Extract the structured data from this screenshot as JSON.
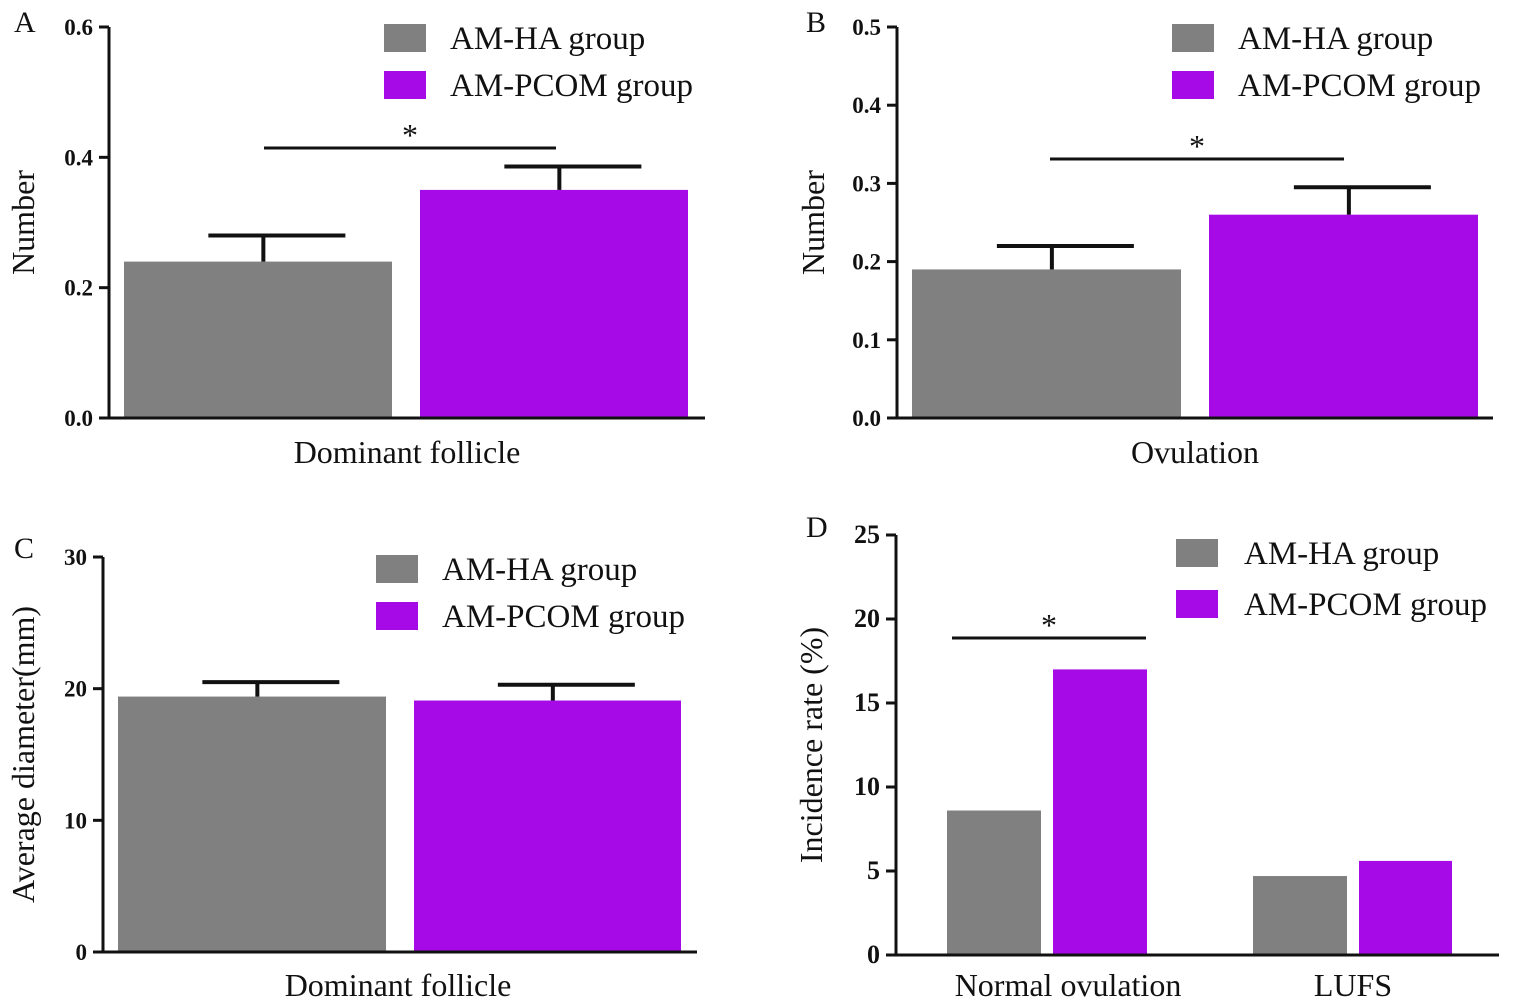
{
  "colors": {
    "ha": "#808080",
    "pcom": "#a60ae6",
    "axis": "#111111"
  },
  "chart_data": [
    {
      "id": "A",
      "panel_letter": "A",
      "type": "bar",
      "categories": [
        "Dominant follicle"
      ],
      "series": [
        {
          "name": "AM-HA group",
          "values": [
            0.24
          ],
          "errors": [
            0.04
          ]
        },
        {
          "name": "AM-PCOM group",
          "values": [
            0.35
          ],
          "errors": [
            0.036
          ]
        }
      ],
      "xlabel": "Dominant follicle",
      "ylabel": "Number",
      "ylim": [
        0,
        0.6
      ],
      "yticks": [
        "0.0",
        "0.2",
        "0.4",
        "0.6"
      ],
      "significance": [
        {
          "category": "Dominant follicle",
          "label": "*"
        }
      ],
      "legend": [
        "AM-HA group",
        "AM-PCOM group"
      ],
      "legend_position": "top-right"
    },
    {
      "id": "B",
      "panel_letter": "B",
      "type": "bar",
      "categories": [
        "Ovulation"
      ],
      "series": [
        {
          "name": "AM-HA group",
          "values": [
            0.19
          ],
          "errors": [
            0.03
          ]
        },
        {
          "name": "AM-PCOM group",
          "values": [
            0.26
          ],
          "errors": [
            0.035
          ]
        }
      ],
      "xlabel": "Ovulation",
      "ylabel": "Number",
      "ylim": [
        0,
        0.5
      ],
      "yticks": [
        "0.0",
        "0.1",
        "0.2",
        "0.3",
        "0.4",
        "0.5"
      ],
      "significance": [
        {
          "category": "Ovulation",
          "label": "*"
        }
      ],
      "legend": [
        "AM-HA group",
        "AM-PCOM group"
      ],
      "legend_position": "top-right"
    },
    {
      "id": "C",
      "panel_letter": "C",
      "type": "bar",
      "categories": [
        "Dominant follicle"
      ],
      "series": [
        {
          "name": "AM-HA group",
          "values": [
            19.4
          ],
          "errors": [
            1.1
          ]
        },
        {
          "name": "AM-PCOM group",
          "values": [
            19.1
          ],
          "errors": [
            1.2
          ]
        }
      ],
      "xlabel": "Dominant follicle",
      "ylabel": "Average diameter(mm)",
      "ylim": [
        0,
        30
      ],
      "yticks": [
        "0",
        "10",
        "20",
        "30"
      ],
      "significance": [],
      "legend": [
        "AM-HA group",
        "AM-PCOM group"
      ],
      "legend_position": "top-right"
    },
    {
      "id": "D",
      "panel_letter": "D",
      "type": "bar",
      "categories": [
        "Normal ovulation",
        "LUFS"
      ],
      "series": [
        {
          "name": "AM-HA group",
          "values": [
            8.6,
            4.7
          ]
        },
        {
          "name": "AM-PCOM group",
          "values": [
            17.0,
            5.6
          ]
        }
      ],
      "xlabel": "",
      "ylabel": "Incidence rate (%)",
      "ylim": [
        0,
        25
      ],
      "yticks": [
        "0",
        "5",
        "10",
        "15",
        "20",
        "25"
      ],
      "significance": [
        {
          "category": "Normal ovulation",
          "label": "*"
        }
      ],
      "legend": [
        "AM-HA group",
        "AM-PCOM group"
      ],
      "legend_position": "top-right"
    }
  ]
}
